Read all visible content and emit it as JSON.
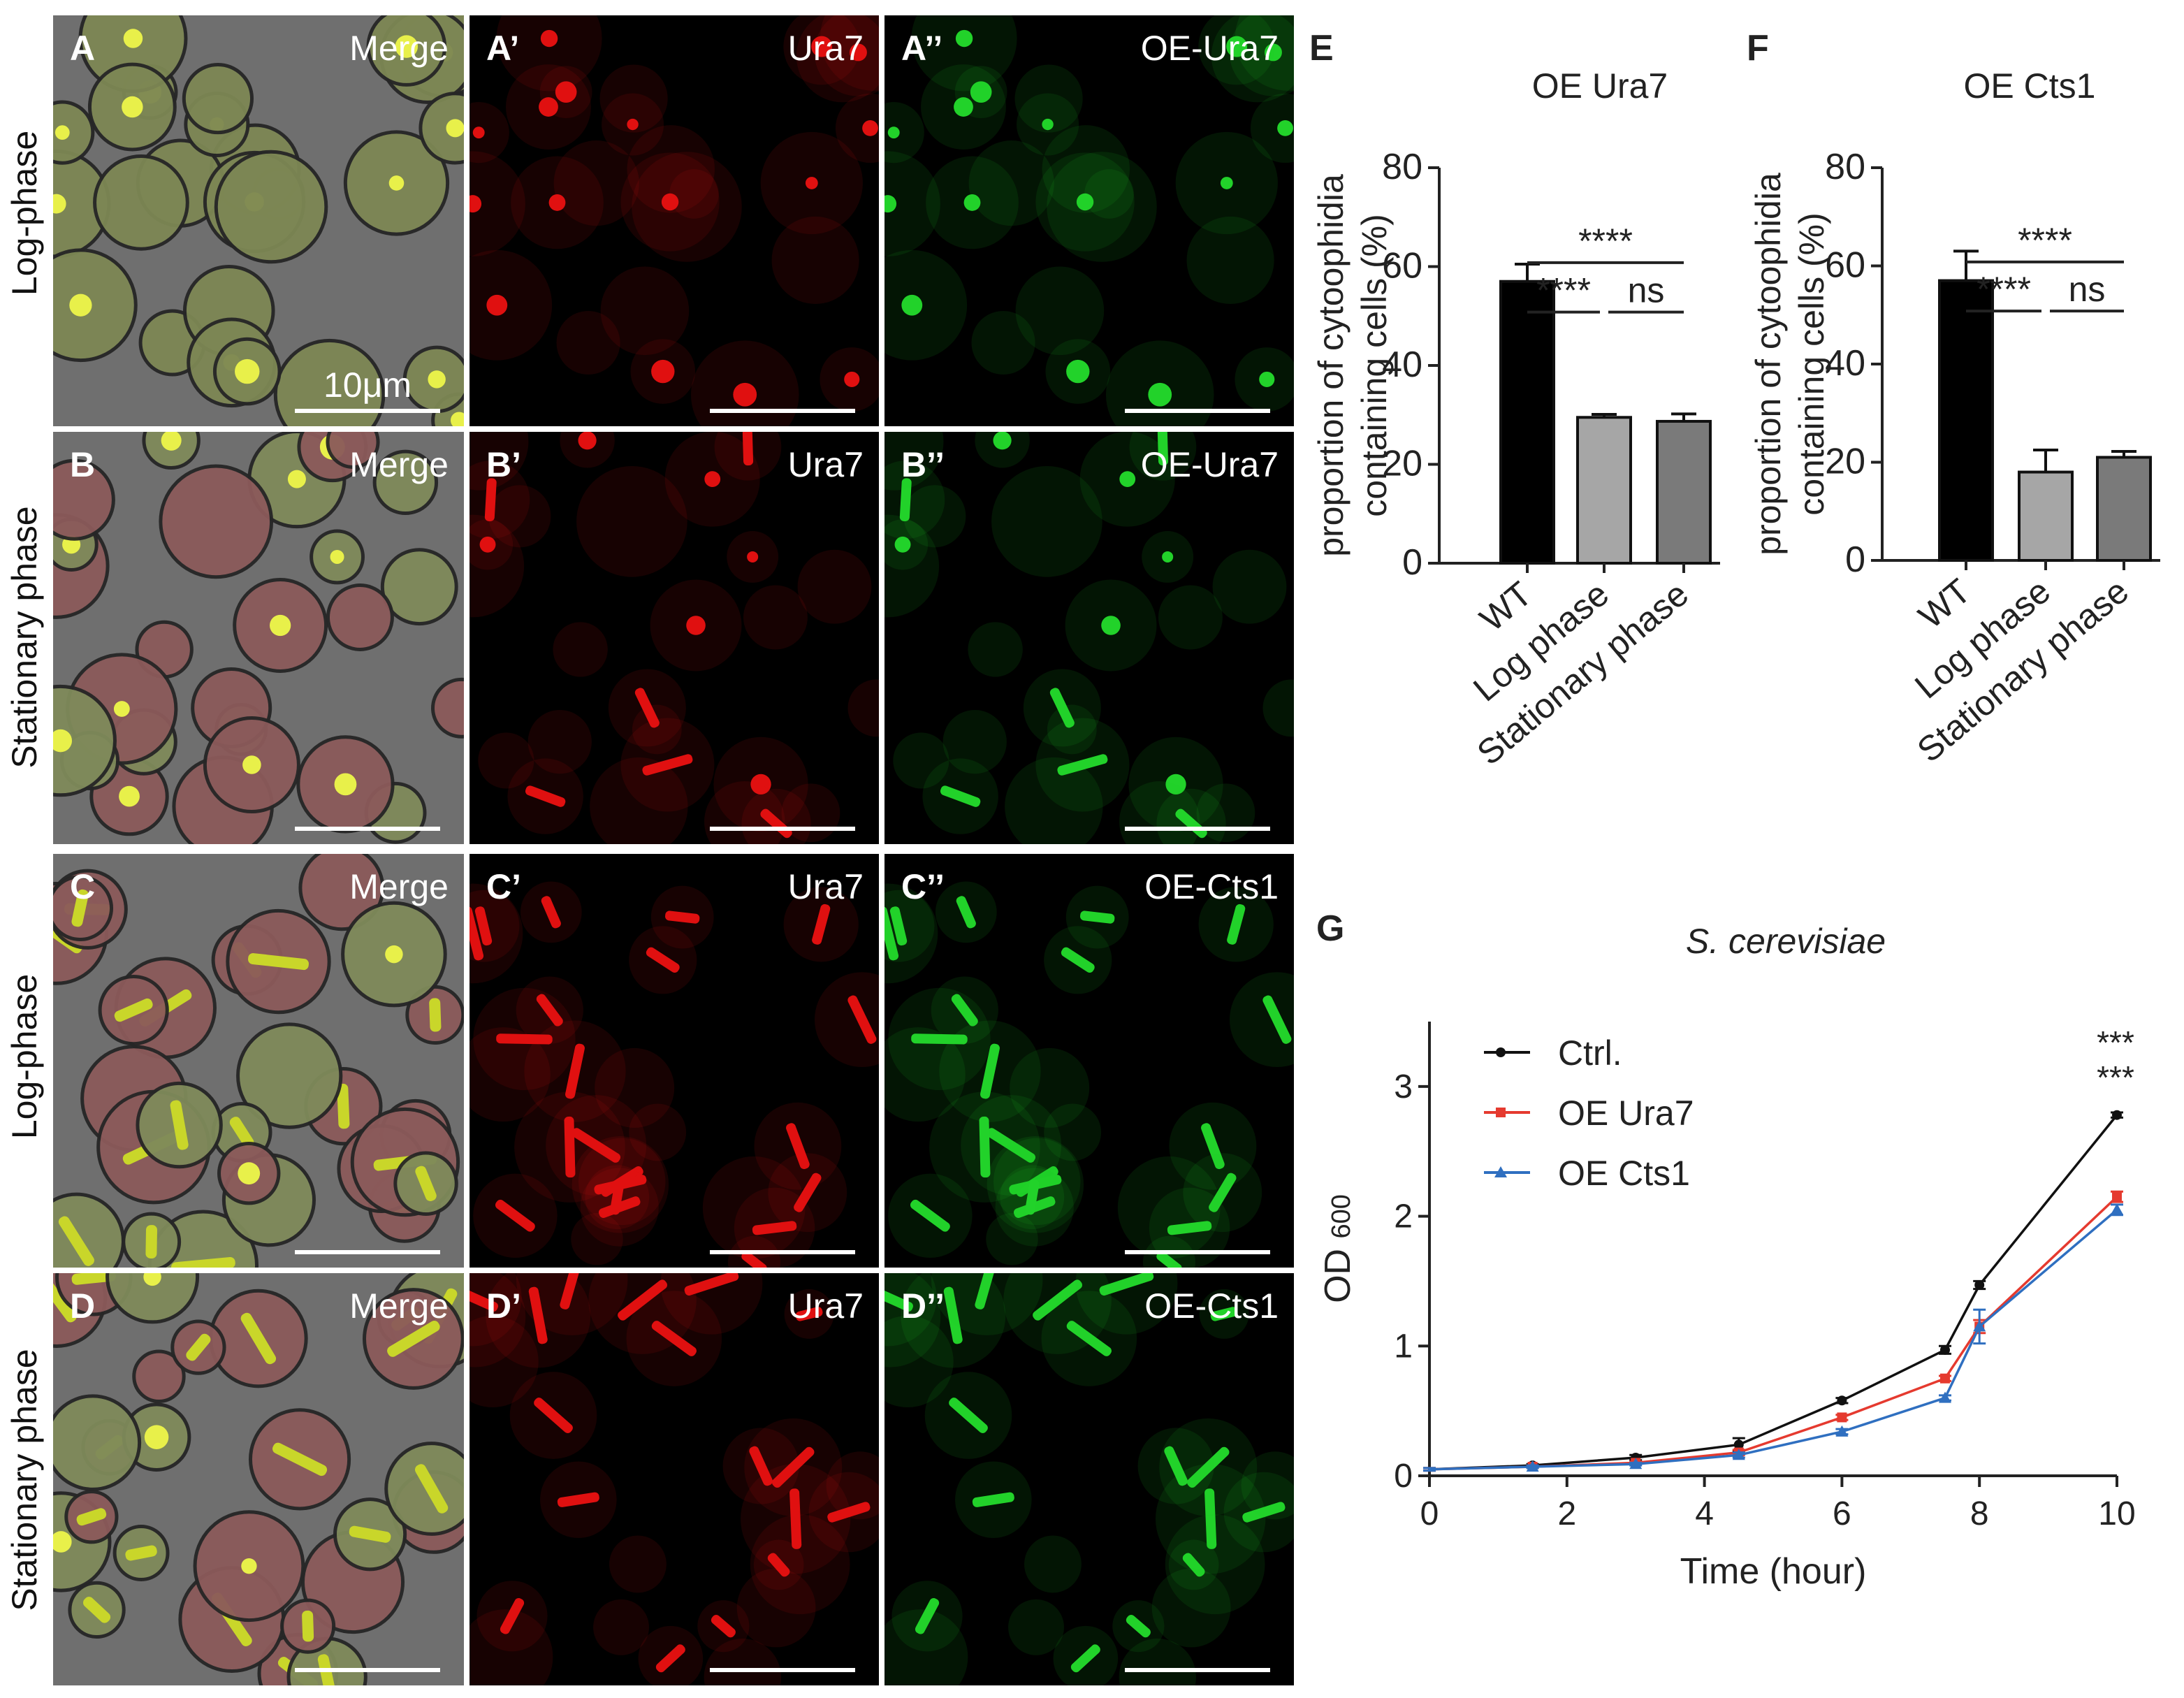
{
  "figure": {
    "rows": [
      {
        "label": "Log-phase",
        "panels": [
          {
            "letter": "A",
            "title": "Merge",
            "scalebar": "10μm"
          },
          {
            "letter": "A’",
            "title": "Ura7"
          },
          {
            "letter": "A’’",
            "title": "OE-Ura7"
          }
        ]
      },
      {
        "label": "Stationary phase",
        "panels": [
          {
            "letter": "B",
            "title": "Merge"
          },
          {
            "letter": "B’",
            "title": "Ura7"
          },
          {
            "letter": "B’’",
            "title": "OE-Ura7"
          }
        ]
      },
      {
        "label": "Log-phase",
        "panels": [
          {
            "letter": "C",
            "title": "Merge"
          },
          {
            "letter": "C’",
            "title": "Ura7"
          },
          {
            "letter": "C’’",
            "title": "OE-Cts1"
          }
        ]
      },
      {
        "label": "Stationary phase",
        "panels": [
          {
            "letter": "D",
            "title": "Merge"
          },
          {
            "letter": "D’",
            "title": "Ura7"
          },
          {
            "letter": "D’’",
            "title": "OE-Cts1"
          }
        ]
      }
    ],
    "colors": {
      "red_channel": "#e01010",
      "green_channel": "#22d22a",
      "brightfield": "#6f6f6f"
    }
  },
  "chart_data": [
    {
      "panel": "E",
      "type": "bar",
      "title": "OE Ura7",
      "ylabel": "proportion of cytoophidia containing cells (%)",
      "ylabel_lines": [
        "proportion of cytoophidia",
        "containing cells (%)"
      ],
      "categories": [
        "WT",
        "Log phase",
        "Stationary phase"
      ],
      "values": [
        57,
        29.5,
        28.7
      ],
      "errors": [
        3.5,
        0.6,
        1.5
      ],
      "colors": [
        "#000000",
        "#a6a6a6",
        "#7a7a7a"
      ],
      "ylim": [
        0,
        80
      ],
      "yticks": [
        "0",
        "20",
        "40",
        "60",
        "80"
      ],
      "significance": [
        {
          "from": 0,
          "to": 2,
          "label": "****",
          "level": 2
        },
        {
          "from": 0,
          "to": 1,
          "label": "****",
          "level": 1
        },
        {
          "from": 1,
          "to": 2,
          "label": "ns",
          "level": 1
        }
      ]
    },
    {
      "panel": "F",
      "type": "bar",
      "title": "OE Cts1",
      "ylabel": "proportion of cytoophidia containing cells (%)",
      "ylabel_lines": [
        "proportion of cytoophidia",
        "containing cells (%)"
      ],
      "categories": [
        "WT",
        "Log phase",
        "Stationary phase"
      ],
      "values": [
        57,
        18,
        21
      ],
      "errors": [
        6,
        4.5,
        1.2
      ],
      "colors": [
        "#000000",
        "#a6a6a6",
        "#7a7a7a"
      ],
      "ylim": [
        0,
        80
      ],
      "yticks": [
        "0",
        "20",
        "40",
        "60",
        "80"
      ],
      "significance": [
        {
          "from": 0,
          "to": 2,
          "label": "****",
          "level": 2
        },
        {
          "from": 0,
          "to": 1,
          "label": "****",
          "level": 1
        },
        {
          "from": 1,
          "to": 2,
          "label": "ns",
          "level": 1
        }
      ]
    },
    {
      "panel": "G",
      "type": "line",
      "title": "S. cerevisiae",
      "xlabel": "Time (hour)",
      "ylabel": "OD",
      "ylabel_sub": "600",
      "xlim": [
        0,
        10
      ],
      "ylim": [
        0,
        3.5
      ],
      "xticks": [
        "0",
        "2",
        "4",
        "6",
        "8",
        "10"
      ],
      "yticks": [
        "0",
        "1",
        "2",
        "3"
      ],
      "annotation": [
        "***",
        "***"
      ],
      "series": [
        {
          "name": "Ctrl.",
          "color": "#111111",
          "marker": "circle",
          "x": [
            0,
            1.5,
            3,
            4.5,
            6,
            7.5,
            8,
            10
          ],
          "y": [
            0.05,
            0.08,
            0.14,
            0.24,
            0.58,
            0.97,
            1.47,
            2.78
          ],
          "err": [
            0.01,
            0.01,
            0.02,
            0.05,
            0.02,
            0.03,
            0.03,
            0.02
          ]
        },
        {
          "name": "OE Ura7",
          "color": "#e53a2f",
          "marker": "square",
          "x": [
            0,
            1.5,
            3,
            4.5,
            6,
            7.5,
            8,
            10
          ],
          "y": [
            0.05,
            0.07,
            0.1,
            0.18,
            0.45,
            0.75,
            1.15,
            2.15
          ],
          "err": [
            0.01,
            0.01,
            0.01,
            0.02,
            0.02,
            0.02,
            0.05,
            0.04
          ]
        },
        {
          "name": "OE Cts1",
          "color": "#2f6fc0",
          "marker": "triangle",
          "x": [
            0,
            1.5,
            3,
            4.5,
            6,
            7.5,
            8,
            10
          ],
          "y": [
            0.05,
            0.07,
            0.09,
            0.16,
            0.34,
            0.6,
            1.15,
            2.05
          ],
          "err": [
            0.01,
            0.01,
            0.01,
            0.02,
            0.02,
            0.02,
            0.13,
            0.04
          ]
        }
      ]
    }
  ]
}
